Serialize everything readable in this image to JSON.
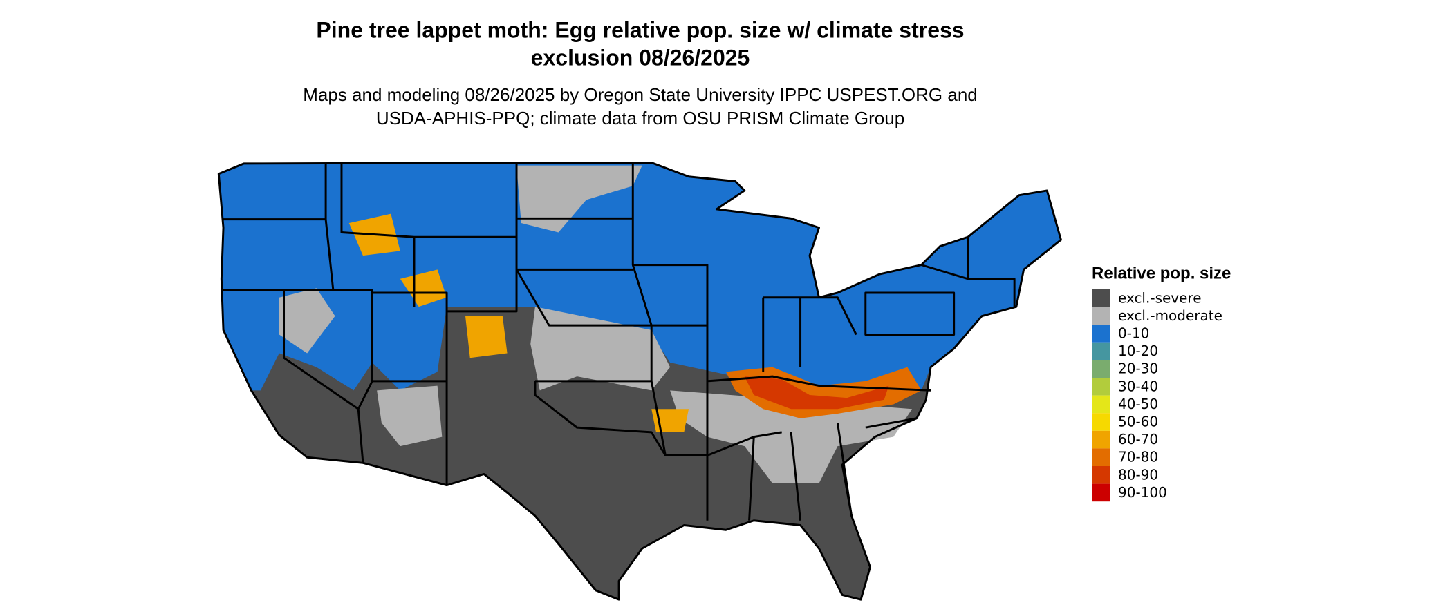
{
  "header": {
    "title": [
      "Pine tree lappet moth: Egg relative pop. size w/ climate stress",
      "exclusion 08/26/2025"
    ],
    "subtitle": [
      "Maps and modeling 08/26/2025 by Oregon State University IPPC USPEST.ORG and",
      "USDA-APHIS-PPQ; climate data from OSU PRISM Climate Group"
    ]
  },
  "legend": {
    "title": "Relative pop. size",
    "items": [
      {
        "label": "excl.-severe",
        "color": "#4d4d4d"
      },
      {
        "label": "excl.-moderate",
        "color": "#b3b3b3"
      },
      {
        "label": "0-10",
        "color": "#1b72cf"
      },
      {
        "label": "10-20",
        "color": "#4596a0"
      },
      {
        "label": "20-30",
        "color": "#7aac6e"
      },
      {
        "label": "30-40",
        "color": "#b2cc3c"
      },
      {
        "label": "40-50",
        "color": "#e4e619"
      },
      {
        "label": "50-60",
        "color": "#f6d900"
      },
      {
        "label": "60-70",
        "color": "#f0a400"
      },
      {
        "label": "70-80",
        "color": "#e36d00"
      },
      {
        "label": "80-90",
        "color": "#d53800"
      },
      {
        "label": "90-100",
        "color": "#cc0000"
      }
    ]
  }
}
